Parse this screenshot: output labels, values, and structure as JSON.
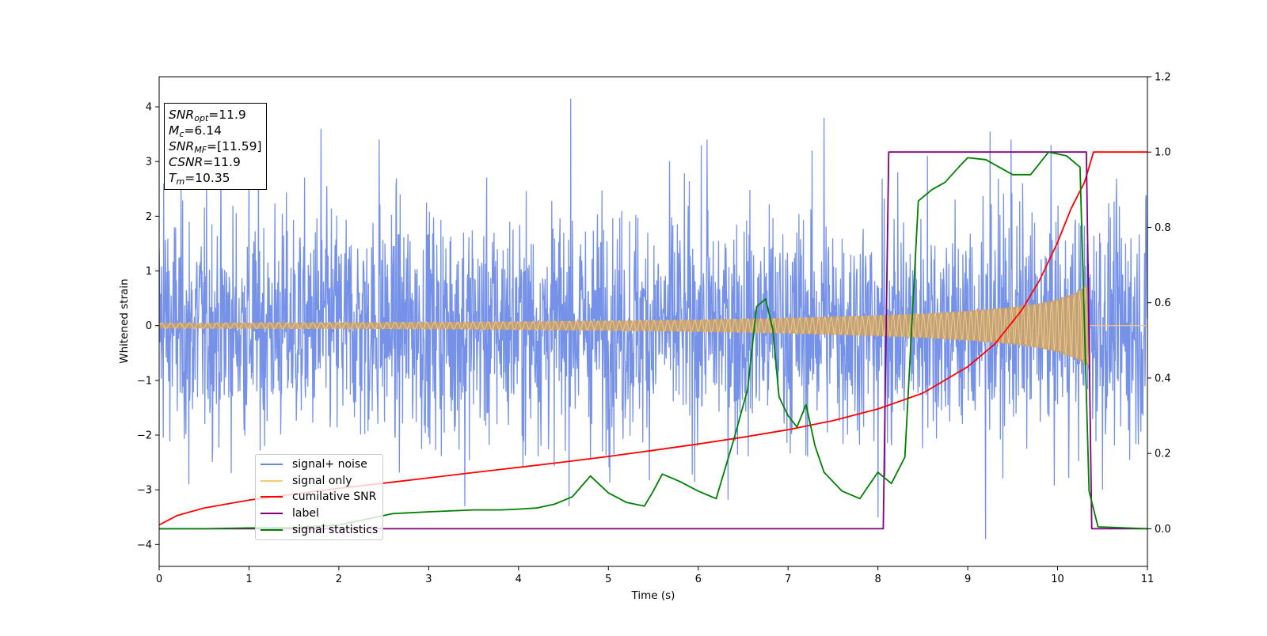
{
  "chart_data": {
    "type": "line",
    "xlabel": "Time (s)",
    "ylabel": "Whitened strain",
    "xlim": [
      0,
      11
    ],
    "ylim": [
      -4.4,
      4.55
    ],
    "y2lim": [
      -0.1,
      1.2
    ],
    "x_ticks": [
      "0",
      "1",
      "2",
      "3",
      "4",
      "5",
      "6",
      "7",
      "8",
      "9",
      "10",
      "11"
    ],
    "y_ticks": [
      "4",
      "3",
      "2",
      "1",
      "0",
      "−1",
      "−2",
      "−3",
      "−4"
    ],
    "y2_ticks": [
      "1.2",
      "1.0",
      "0.8",
      "0.6",
      "0.4",
      "0.2",
      "0.0"
    ],
    "grid": false,
    "legend_position": "lower-left",
    "legend": [
      {
        "label": "signal+ noise",
        "color": "#6a89e6"
      },
      {
        "label": "signal only",
        "color": "#f9c77a"
      },
      {
        "label": "cumilative SNR",
        "color": "#ff0000"
      },
      {
        "label": "label",
        "color": "#800080"
      },
      {
        "label": "signal statistics",
        "color": "#008000"
      }
    ],
    "annotation": {
      "snr_opt": {
        "name": "SNR",
        "sub": "opt",
        "value": "=11.9"
      },
      "mc": {
        "name": "M",
        "sub": "c",
        "value": "=6.14"
      },
      "snr_mf": {
        "name": "SNR",
        "sub": "MF",
        "value": "=[11.59]"
      },
      "csnr": {
        "name": "CSNR",
        "sub": "",
        "value": "=11.9"
      },
      "tm": {
        "name": "T",
        "sub": "m",
        "value": "=10.35"
      }
    },
    "series": [
      {
        "name": "signal+ noise",
        "axis": "left",
        "color": "#6a89e6",
        "noise_band": {
          "typical_amplitude": 2.4,
          "peak_amplitude": 4.15,
          "x_range": [
            0,
            11
          ]
        },
        "spikes": [
          [
            0.05,
            2.6
          ],
          [
            1.0,
            2.9
          ],
          [
            1.8,
            3.6
          ],
          [
            2.45,
            3.4
          ],
          [
            4.58,
            4.15
          ],
          [
            7.4,
            3.8
          ],
          [
            8.0,
            -3.5
          ],
          [
            8.55,
            3.1
          ],
          [
            9.25,
            3.55
          ],
          [
            9.48,
            3.4
          ],
          [
            9.2,
            -3.9
          ],
          [
            10.5,
            -3.0
          ],
          [
            6.1,
            3.4
          ],
          [
            3.4,
            -3.3
          ],
          [
            0.33,
            -2.9
          ]
        ]
      },
      {
        "name": "signal only",
        "axis": "left",
        "color": "#f9c77a",
        "envelope": {
          "x": [
            0,
            1,
            2,
            3,
            4,
            5,
            6,
            7,
            8,
            8.5,
            9,
            9.5,
            9.8,
            10,
            10.2,
            10.3,
            10.35
          ],
          "amplitude": [
            0.05,
            0.055,
            0.06,
            0.065,
            0.075,
            0.09,
            0.11,
            0.14,
            0.19,
            0.22,
            0.27,
            0.34,
            0.41,
            0.48,
            0.6,
            0.7,
            0.75
          ]
        }
      },
      {
        "name": "cumilative SNR",
        "axis": "right",
        "color": "#ff0000",
        "x": [
          0,
          0.2,
          0.5,
          1,
          1.5,
          2,
          2.5,
          3,
          3.5,
          4,
          4.5,
          5,
          5.5,
          6,
          6.5,
          7,
          7.5,
          8,
          8.5,
          9,
          9.3,
          9.6,
          9.8,
          10.0,
          10.15,
          10.3,
          10.35,
          10.4,
          11
        ],
        "y": [
          0.01,
          0.035,
          0.055,
          0.076,
          0.092,
          0.107,
          0.121,
          0.135,
          0.149,
          0.163,
          0.177,
          0.192,
          0.208,
          0.225,
          0.243,
          0.263,
          0.287,
          0.318,
          0.36,
          0.43,
          0.49,
          0.58,
          0.66,
          0.76,
          0.85,
          0.92,
          0.96,
          1.0,
          1.0
        ]
      },
      {
        "name": "label",
        "axis": "right",
        "color": "#800080",
        "x": [
          0,
          8.06,
          8.12,
          10.32,
          10.38,
          11
        ],
        "y": [
          0.0,
          0.0,
          1.0,
          1.0,
          0.0,
          0.0
        ]
      },
      {
        "name": "signal statistics",
        "axis": "right",
        "color": "#008000",
        "x": [
          0,
          0.5,
          1,
          1.5,
          2.0,
          2.2,
          2.4,
          2.6,
          3.0,
          3.5,
          3.8,
          4.0,
          4.2,
          4.4,
          4.6,
          4.8,
          5.0,
          5.2,
          5.4,
          5.5,
          5.6,
          5.7,
          5.8,
          6.0,
          6.2,
          6.4,
          6.55,
          6.65,
          6.75,
          6.83,
          6.9,
          7.0,
          7.1,
          7.2,
          7.3,
          7.4,
          7.6,
          7.8,
          8.0,
          8.15,
          8.3,
          8.45,
          8.6,
          8.75,
          8.9,
          9.0,
          9.2,
          9.5,
          9.7,
          9.9,
          10.1,
          10.25,
          10.35,
          10.45,
          11
        ],
        "y": [
          0.0,
          0.0,
          0.002,
          0.003,
          0.01,
          0.02,
          0.03,
          0.04,
          0.045,
          0.05,
          0.05,
          0.052,
          0.055,
          0.065,
          0.085,
          0.14,
          0.095,
          0.07,
          0.06,
          0.1,
          0.145,
          0.135,
          0.125,
          0.1,
          0.08,
          0.24,
          0.37,
          0.59,
          0.61,
          0.53,
          0.35,
          0.3,
          0.27,
          0.33,
          0.22,
          0.15,
          0.1,
          0.08,
          0.15,
          0.12,
          0.19,
          0.87,
          0.9,
          0.92,
          0.96,
          0.985,
          0.98,
          0.94,
          0.94,
          1.0,
          0.99,
          0.96,
          0.1,
          0.005,
          0.0
        ]
      }
    ]
  }
}
